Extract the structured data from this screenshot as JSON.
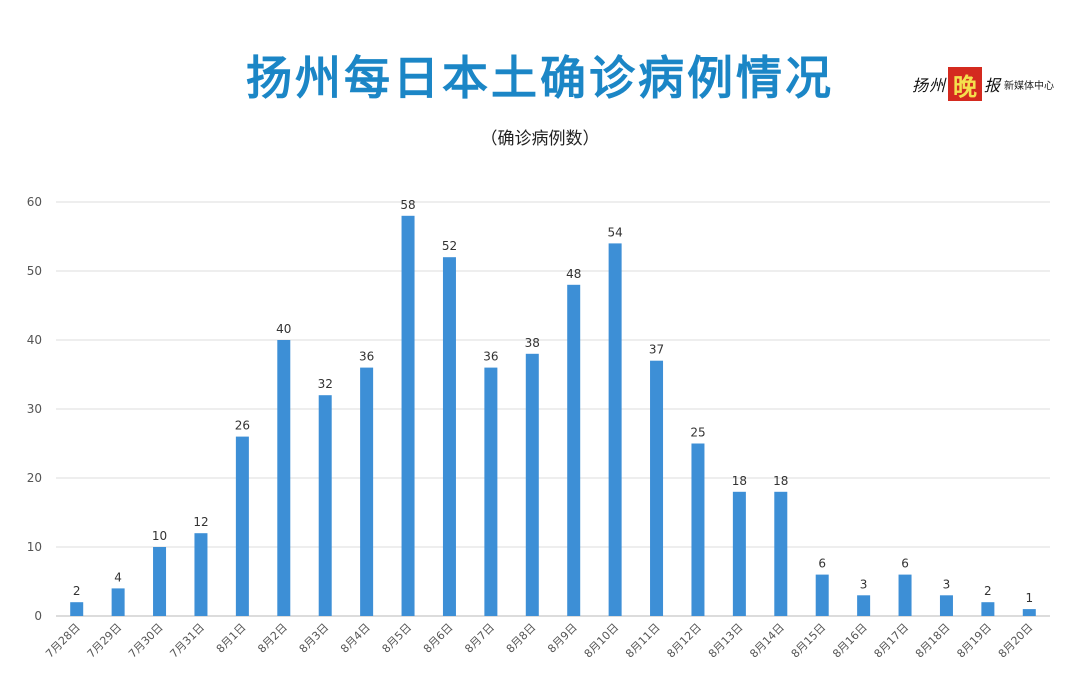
{
  "header": {
    "title": "扬州每日本土确诊病例情况",
    "subtitle": "（确诊病例数）"
  },
  "brand": {
    "name_part1": "扬州",
    "name_seal": "晚",
    "name_part2": "报",
    "suffix": "新媒体中心"
  },
  "chart_data": {
    "type": "bar",
    "title": "扬州每日本土确诊病例情况",
    "subtitle": "（确诊病例数）",
    "xlabel": "",
    "ylabel": "",
    "ylim": [
      0,
      60
    ],
    "yticks": [
      0,
      10,
      20,
      30,
      40,
      50,
      60
    ],
    "grid": true,
    "bar_color": "#3d8fd6",
    "categories": [
      "7月28日",
      "7月29日",
      "7月30日",
      "7月31日",
      "8月1日",
      "8月2日",
      "8月3日",
      "8月4日",
      "8月5日",
      "8月6日",
      "8月7日",
      "8月8日",
      "8月9日",
      "8月10日",
      "8月11日",
      "8月12日",
      "8月13日",
      "8月14日",
      "8月15日",
      "8月16日",
      "8月17日",
      "8月18日",
      "8月19日",
      "8月20日"
    ],
    "values": [
      2,
      4,
      10,
      12,
      26,
      40,
      32,
      36,
      58,
      52,
      36,
      38,
      48,
      54,
      37,
      25,
      18,
      18,
      6,
      3,
      6,
      3,
      2,
      1
    ]
  }
}
